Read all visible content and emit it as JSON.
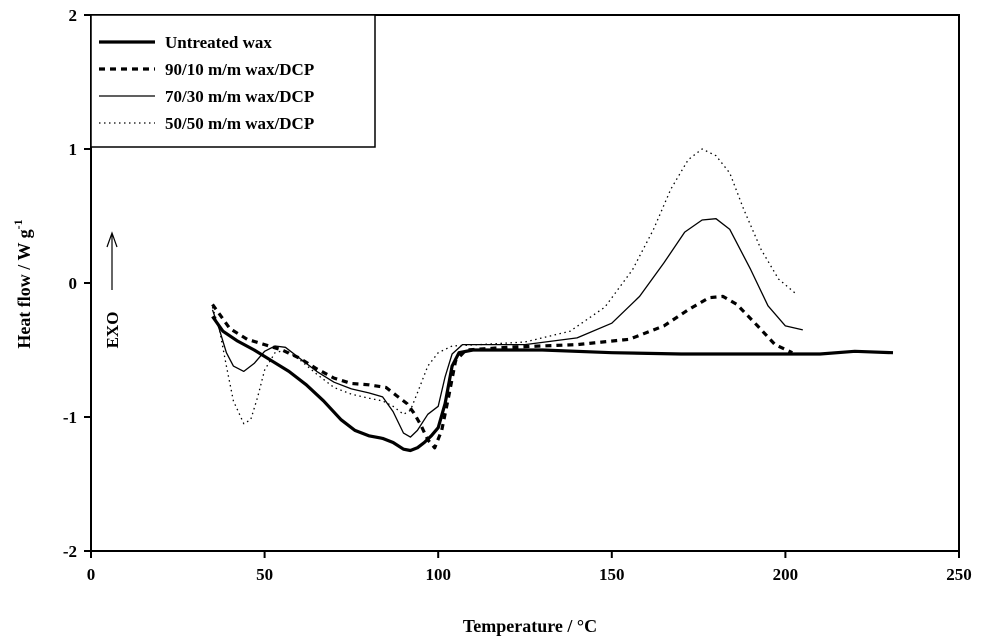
{
  "chart_data": {
    "type": "line",
    "xlabel": "Temperature / °C",
    "ylabel_main": "Heat flow / W g",
    "ylabel_sup": "-1",
    "xlim": [
      0,
      250
    ],
    "ylim": [
      -2,
      2
    ],
    "x_ticks": [
      0,
      50,
      100,
      150,
      200,
      250
    ],
    "y_ticks": [
      -2,
      -1,
      0,
      1,
      2
    ],
    "grid": false,
    "legend_position": "top-left",
    "annotation": {
      "text": "EXO",
      "arrow": "up"
    },
    "series": [
      {
        "name": "Untreated wax",
        "style": "solid-thick",
        "color": "#000000",
        "points": [
          [
            35,
            -0.25
          ],
          [
            38,
            -0.36
          ],
          [
            42,
            -0.43
          ],
          [
            47,
            -0.5
          ],
          [
            52,
            -0.58
          ],
          [
            57,
            -0.66
          ],
          [
            62,
            -0.76
          ],
          [
            67,
            -0.88
          ],
          [
            72,
            -1.02
          ],
          [
            76,
            -1.1
          ],
          [
            80,
            -1.14
          ],
          [
            84,
            -1.16
          ],
          [
            87,
            -1.19
          ],
          [
            90,
            -1.24
          ],
          [
            92,
            -1.25
          ],
          [
            94,
            -1.23
          ],
          [
            96,
            -1.19
          ],
          [
            98,
            -1.14
          ],
          [
            100,
            -1.08
          ],
          [
            102,
            -0.9
          ],
          [
            104,
            -0.62
          ],
          [
            106,
            -0.52
          ],
          [
            110,
            -0.5
          ],
          [
            130,
            -0.5
          ],
          [
            150,
            -0.52
          ],
          [
            170,
            -0.53
          ],
          [
            190,
            -0.53
          ],
          [
            210,
            -0.53
          ],
          [
            220,
            -0.51
          ],
          [
            231,
            -0.52
          ]
        ]
      },
      {
        "name": "90/10 m/m wax/DCP",
        "style": "dashed-thick",
        "color": "#000000",
        "points": [
          [
            35,
            -0.16
          ],
          [
            40,
            -0.34
          ],
          [
            45,
            -0.42
          ],
          [
            50,
            -0.46
          ],
          [
            55,
            -0.5
          ],
          [
            60,
            -0.56
          ],
          [
            65,
            -0.64
          ],
          [
            70,
            -0.71
          ],
          [
            75,
            -0.75
          ],
          [
            80,
            -0.76
          ],
          [
            85,
            -0.78
          ],
          [
            88,
            -0.84
          ],
          [
            91,
            -0.9
          ],
          [
            93,
            -0.97
          ],
          [
            95,
            -1.06
          ],
          [
            97,
            -1.17
          ],
          [
            99,
            -1.23
          ],
          [
            101,
            -1.1
          ],
          [
            103,
            -0.85
          ],
          [
            105,
            -0.58
          ],
          [
            108,
            -0.5
          ],
          [
            120,
            -0.48
          ],
          [
            140,
            -0.46
          ],
          [
            155,
            -0.42
          ],
          [
            165,
            -0.32
          ],
          [
            172,
            -0.2
          ],
          [
            178,
            -0.11
          ],
          [
            182,
            -0.1
          ],
          [
            186,
            -0.16
          ],
          [
            192,
            -0.32
          ],
          [
            197,
            -0.46
          ],
          [
            202,
            -0.52
          ]
        ]
      },
      {
        "name": "70/30 m/m wax/DCP",
        "style": "solid-thin",
        "color": "#000000",
        "points": [
          [
            35,
            -0.2
          ],
          [
            37,
            -0.35
          ],
          [
            39,
            -0.52
          ],
          [
            41,
            -0.62
          ],
          [
            44,
            -0.66
          ],
          [
            47,
            -0.6
          ],
          [
            50,
            -0.51
          ],
          [
            53,
            -0.47
          ],
          [
            56,
            -0.48
          ],
          [
            60,
            -0.56
          ],
          [
            65,
            -0.66
          ],
          [
            70,
            -0.74
          ],
          [
            75,
            -0.79
          ],
          [
            80,
            -0.82
          ],
          [
            84,
            -0.85
          ],
          [
            87,
            -0.96
          ],
          [
            90,
            -1.12
          ],
          [
            92,
            -1.15
          ],
          [
            94,
            -1.1
          ],
          [
            97,
            -0.98
          ],
          [
            100,
            -0.92
          ],
          [
            102,
            -0.7
          ],
          [
            104,
            -0.53
          ],
          [
            107,
            -0.46
          ],
          [
            115,
            -0.46
          ],
          [
            125,
            -0.46
          ],
          [
            140,
            -0.41
          ],
          [
            150,
            -0.3
          ],
          [
            158,
            -0.1
          ],
          [
            165,
            0.15
          ],
          [
            171,
            0.38
          ],
          [
            176,
            0.47
          ],
          [
            180,
            0.48
          ],
          [
            184,
            0.4
          ],
          [
            190,
            0.1
          ],
          [
            195,
            -0.17
          ],
          [
            200,
            -0.32
          ],
          [
            205,
            -0.35
          ]
        ]
      },
      {
        "name": "50/50 m/m wax/DCP",
        "style": "dotted-thin",
        "color": "#000000",
        "points": [
          [
            35,
            -0.18
          ],
          [
            37,
            -0.35
          ],
          [
            39,
            -0.62
          ],
          [
            41,
            -0.88
          ],
          [
            44,
            -1.05
          ],
          [
            46,
            -1.02
          ],
          [
            48,
            -0.85
          ],
          [
            50,
            -0.65
          ],
          [
            53,
            -0.52
          ],
          [
            56,
            -0.5
          ],
          [
            60,
            -0.57
          ],
          [
            65,
            -0.68
          ],
          [
            70,
            -0.78
          ],
          [
            75,
            -0.83
          ],
          [
            80,
            -0.86
          ],
          [
            84,
            -0.88
          ],
          [
            87,
            -0.92
          ],
          [
            90,
            -0.98
          ],
          [
            92,
            -0.95
          ],
          [
            94,
            -0.82
          ],
          [
            97,
            -0.62
          ],
          [
            100,
            -0.52
          ],
          [
            104,
            -0.47
          ],
          [
            112,
            -0.46
          ],
          [
            125,
            -0.44
          ],
          [
            138,
            -0.36
          ],
          [
            148,
            -0.18
          ],
          [
            156,
            0.1
          ],
          [
            162,
            0.4
          ],
          [
            167,
            0.7
          ],
          [
            172,
            0.92
          ],
          [
            176,
            1.0
          ],
          [
            180,
            0.95
          ],
          [
            184,
            0.82
          ],
          [
            188,
            0.55
          ],
          [
            193,
            0.25
          ],
          [
            198,
            0.03
          ],
          [
            203,
            -0.08
          ]
        ]
      }
    ]
  }
}
